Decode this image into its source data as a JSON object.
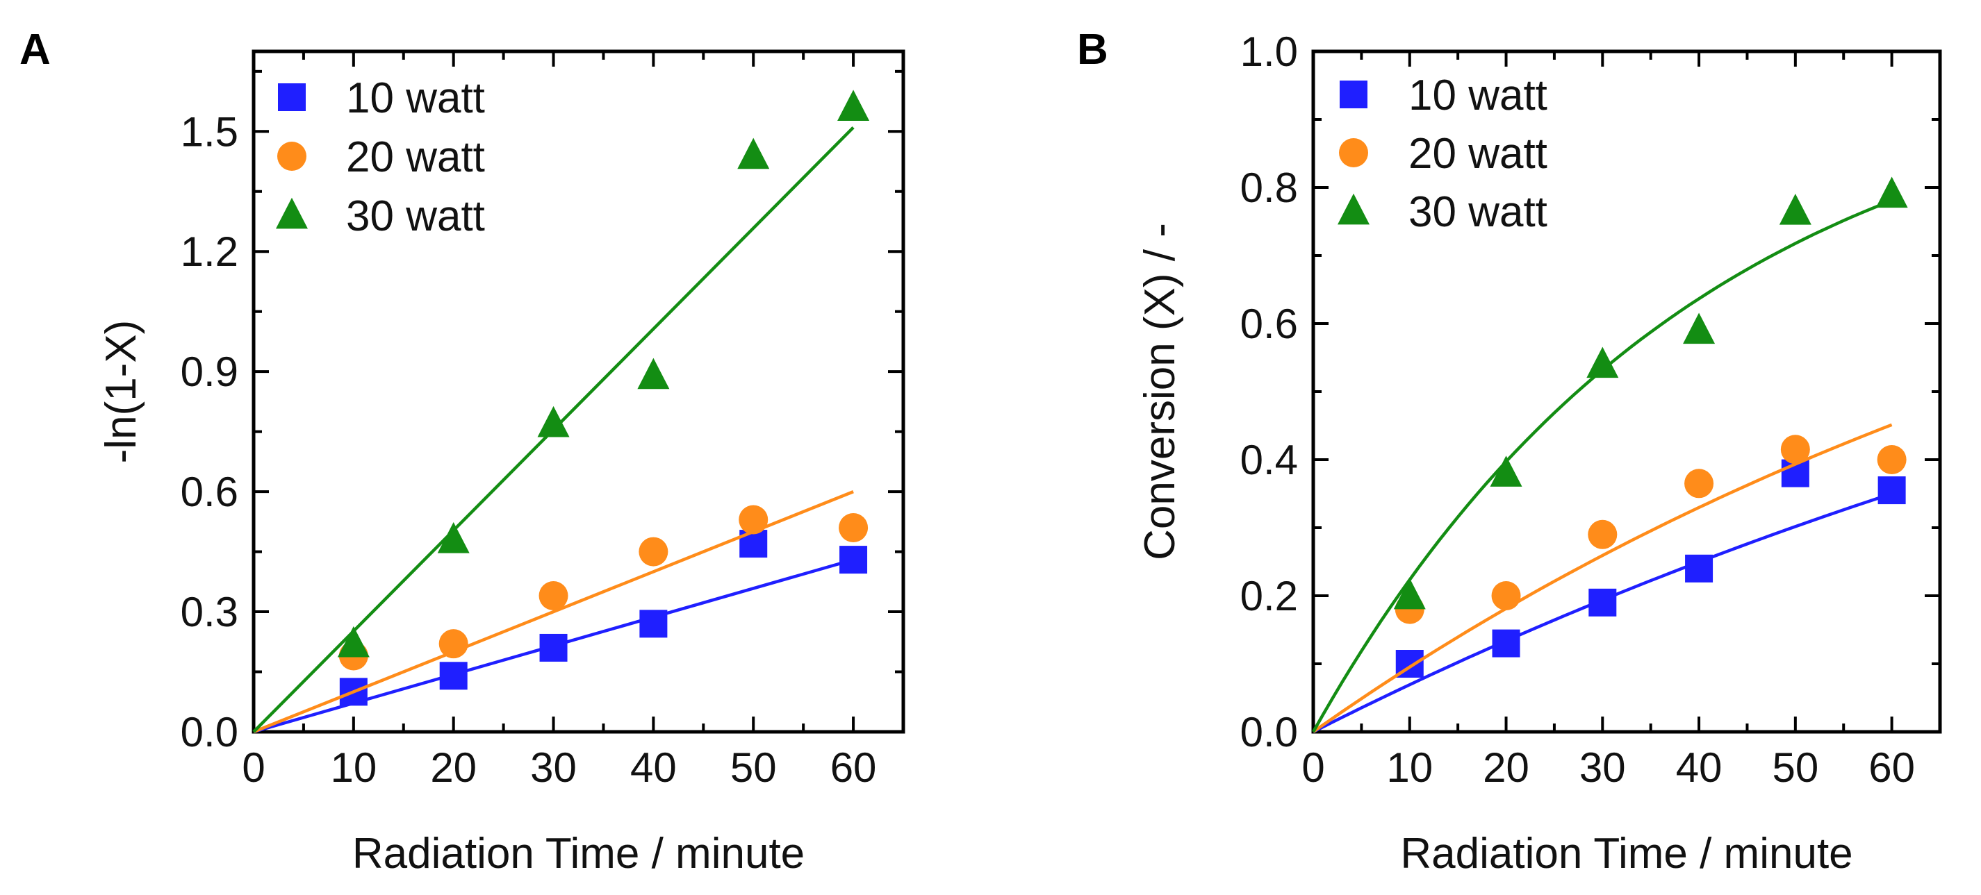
{
  "figure": {
    "panels": [
      "A",
      "B"
    ]
  },
  "colors": {
    "10 watt": "#1f1fff",
    "20 watt": "#ff8c1a",
    "30 watt": "#138d13"
  },
  "chart_data": [
    {
      "panel": "A",
      "type": "scatter",
      "title": "",
      "xlabel": "Radiation Time / minute",
      "ylabel": "-ln(1-X)",
      "xlim": [
        0,
        65
      ],
      "ylim": [
        0,
        1.7
      ],
      "xticks": [
        0,
        10,
        20,
        30,
        40,
        50,
        60
      ],
      "yticks": [
        0.0,
        0.3,
        0.6,
        0.9,
        1.2,
        1.5
      ],
      "ytick_labels": [
        "0.0",
        "0.3",
        "0.6",
        "0.9",
        "1.2",
        "1.5"
      ],
      "legend": "top-left",
      "series": [
        {
          "name": "10 watt",
          "marker": "square",
          "x": [
            10,
            20,
            30,
            40,
            50,
            60
          ],
          "y": [
            0.1,
            0.14,
            0.21,
            0.27,
            0.47,
            0.43
          ],
          "fit": {
            "kind": "linear",
            "x": [
              0,
              60
            ],
            "y": [
              0,
              0.43
            ]
          }
        },
        {
          "name": "20 watt",
          "marker": "circle",
          "x": [
            10,
            20,
            30,
            40,
            50,
            60
          ],
          "y": [
            0.19,
            0.22,
            0.34,
            0.45,
            0.53,
            0.51
          ],
          "fit": {
            "kind": "linear",
            "x": [
              0,
              60
            ],
            "y": [
              0,
              0.6
            ]
          }
        },
        {
          "name": "30 watt",
          "marker": "triangle",
          "x": [
            10,
            20,
            30,
            40,
            50,
            60
          ],
          "y": [
            0.22,
            0.48,
            0.77,
            0.89,
            1.44,
            1.56
          ],
          "fit": {
            "kind": "linear",
            "x": [
              0,
              60
            ],
            "y": [
              0,
              1.51
            ]
          }
        }
      ]
    },
    {
      "panel": "B",
      "type": "scatter",
      "title": "",
      "xlabel": "Radiation Time / minute",
      "ylabel": "Conversion (X) / -",
      "xlim": [
        0,
        65
      ],
      "ylim": [
        0,
        1.0
      ],
      "xticks": [
        0,
        10,
        20,
        30,
        40,
        50,
        60
      ],
      "yticks": [
        0.0,
        0.2,
        0.4,
        0.6,
        0.8,
        1.0
      ],
      "ytick_labels": [
        "0.0",
        "0.2",
        "0.4",
        "0.6",
        "0.8",
        "1.0"
      ],
      "legend": "top-left",
      "series": [
        {
          "name": "10 watt",
          "marker": "square",
          "x": [
            10,
            20,
            30,
            40,
            50,
            60
          ],
          "y": [
            0.1,
            0.13,
            0.19,
            0.24,
            0.38,
            0.355
          ],
          "fit": {
            "kind": "first-order",
            "k": 0.00718
          }
        },
        {
          "name": "20 watt",
          "marker": "circle",
          "x": [
            10,
            20,
            30,
            40,
            50,
            60
          ],
          "y": [
            0.18,
            0.2,
            0.29,
            0.365,
            0.415,
            0.4
          ],
          "fit": {
            "kind": "first-order",
            "k": 0.01
          }
        },
        {
          "name": "30 watt",
          "marker": "triangle",
          "x": [
            10,
            20,
            30,
            40,
            50,
            60
          ],
          "y": [
            0.2,
            0.38,
            0.54,
            0.59,
            0.765,
            0.79
          ],
          "fit": {
            "kind": "first-order",
            "k": 0.0253
          }
        }
      ]
    }
  ]
}
